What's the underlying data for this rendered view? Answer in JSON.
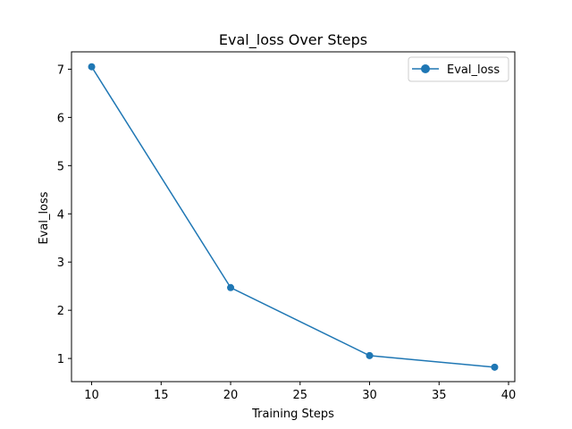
{
  "chart_data": {
    "type": "line",
    "title": "Eval_loss Over Steps",
    "xlabel": "Training Steps",
    "ylabel": "Eval_loss",
    "xlim": [
      8.55,
      40.45
    ],
    "ylim": [
      0.52,
      7.36
    ],
    "xticks": [
      10,
      15,
      20,
      25,
      30,
      35,
      40
    ],
    "yticks": [
      1,
      2,
      3,
      4,
      5,
      6,
      7
    ],
    "grid": false,
    "legend": "top-right",
    "series": [
      {
        "name": "Eval_loss",
        "color": "#1f77b4",
        "marker": "circle",
        "x": [
          10,
          20,
          30,
          39
        ],
        "y": [
          7.05,
          2.47,
          1.06,
          0.82
        ]
      }
    ]
  }
}
